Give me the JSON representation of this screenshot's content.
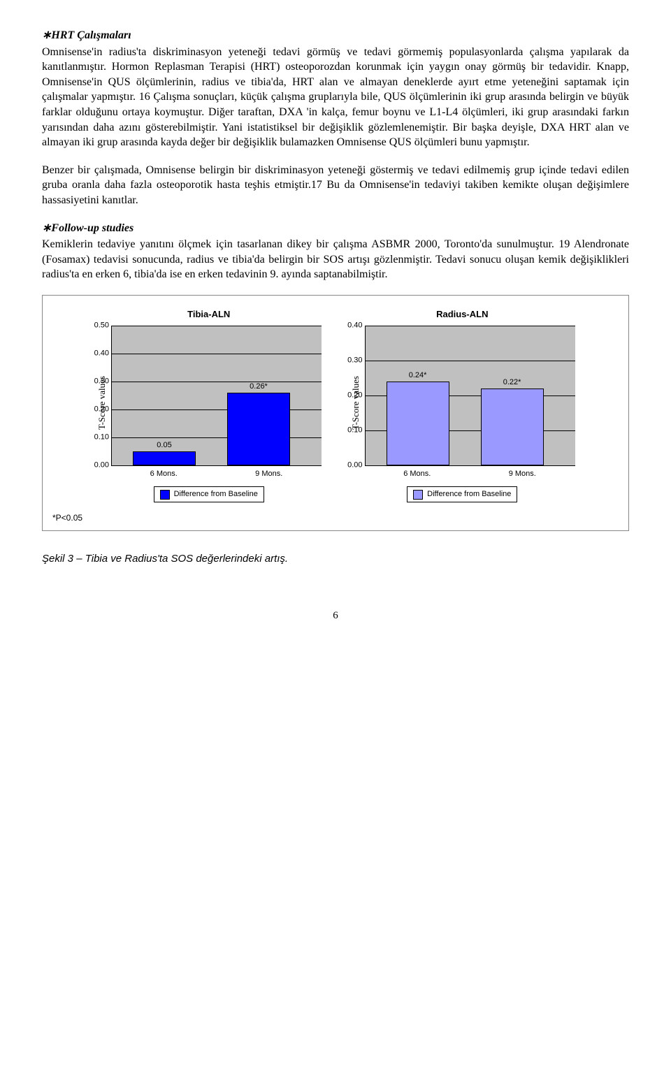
{
  "section1": {
    "title": "∗HRT Çalışmaları",
    "text": "Omnisense'in radius'ta diskriminasyon yeteneği tedavi görmüş ve tedavi görmemiş populasyonlarda çalışma yapılarak da kanıtlanmıştır. Hormon Replasman Terapisi (HRT) osteoporozdan korunmak için yaygın onay görmüş bir tedavidir. Knapp, Omnisense'in QUS ölçümlerinin, radius ve tibia'da, HRT alan ve almayan deneklerde ayırt etme yeteneğini saptamak için çalışmalar yapmıştır. 16  Çalışma sonuçları, küçük çalışma gruplarıyla bile,  QUS ölçümlerinin iki grup arasında belirgin ve büyük farklar olduğunu ortaya koymuştur. Diğer taraftan, DXA 'in kalça, femur boynu ve L1-L4 ölçümleri, iki grup arasındaki farkın yarısından daha azını gösterebilmiştir. Yani istatistiksel bir değişiklik gözlemlenemiştir. Bir başka deyişle, DXA HRT alan ve almayan iki grup arasında kayda değer bir değişiklik bulamazken Omnisense QUS ölçümleri bunu yapmıştır."
  },
  "para2": "Benzer bir çalışmada, Omnisense belirgin bir diskriminasyon yeteneği göstermiş ve tedavi edilmemiş grup içinde tedavi edilen gruba oranla daha fazla osteoporotik hasta teşhis etmiştir.17 Bu da Omnisense'in tedaviyi takiben kemikte oluşan değişimlere hassasiyetini kanıtlar.",
  "section2": {
    "title": "∗Follow-up studies",
    "text": "Kemiklerin tedaviye yanıtını ölçmek için tasarlanan dikey bir çalışma ASBMR 2000, Toronto'da sunulmuştur. 19 Alendronate (Fosamax) tedavisi sonucunda, radius ve tibia'da belirgin bir SOS artışı gözlenmiştir. Tedavi sonucu oluşan kemik değişiklikleri radius'ta en erken 6, tibia'da ise en erken tedavinin 9. ayında saptanabilmiştir."
  },
  "charts": {
    "footnote": "*P<0.05",
    "left": {
      "title": "Tibia-ALN",
      "ylabel": "T-Score values",
      "ymax": 0.5,
      "yticks": [
        "0.00",
        "0.10",
        "0.20",
        "0.30",
        "0.40",
        "0.50"
      ],
      "xticks": [
        "6 Mons.",
        "9 Mons."
      ],
      "bar_color": "#0000ff",
      "bars": [
        {
          "label": "0.05",
          "value": 0.05,
          "star": false
        },
        {
          "label": "0.26",
          "value": 0.26,
          "star": true
        }
      ],
      "legend": "Difference from Baseline",
      "grid_color": "#000000",
      "bg_color": "#c0c0c0"
    },
    "right": {
      "title": "Radius-ALN",
      "ylabel": "T-Score values",
      "ymax": 0.4,
      "yticks": [
        "0.00",
        "0.10",
        "0.20",
        "0.30",
        "0.40"
      ],
      "xticks": [
        "6 Mons.",
        "9 Mons."
      ],
      "bar_color": "#9999ff",
      "bars": [
        {
          "label": "0.24",
          "value": 0.24,
          "star": true
        },
        {
          "label": "0.22",
          "value": 0.22,
          "star": true
        }
      ],
      "legend": "Difference from Baseline",
      "grid_color": "#000000",
      "bg_color": "#c0c0c0"
    }
  },
  "figure_caption": "Şekil 3 – Tibia ve Radius'ta SOS değerlerindeki artış.",
  "page_number": "6"
}
